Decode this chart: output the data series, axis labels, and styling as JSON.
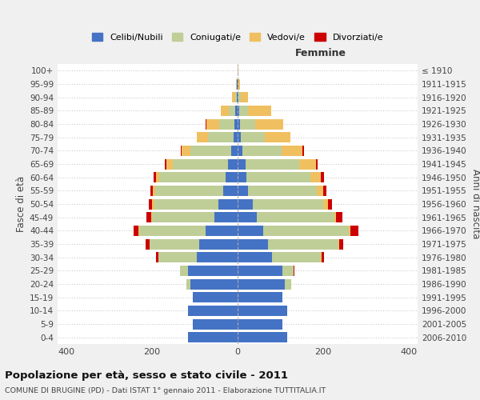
{
  "age_groups": [
    "0-4",
    "5-9",
    "10-14",
    "15-19",
    "20-24",
    "25-29",
    "30-34",
    "35-39",
    "40-44",
    "45-49",
    "50-54",
    "55-59",
    "60-64",
    "65-69",
    "70-74",
    "75-79",
    "80-84",
    "85-89",
    "90-94",
    "95-99",
    "100+"
  ],
  "birth_years": [
    "2006-2010",
    "2001-2005",
    "1996-2000",
    "1991-1995",
    "1986-1990",
    "1981-1985",
    "1976-1980",
    "1971-1975",
    "1966-1970",
    "1961-1965",
    "1956-1960",
    "1951-1955",
    "1946-1950",
    "1941-1945",
    "1936-1940",
    "1931-1935",
    "1926-1930",
    "1921-1925",
    "1916-1920",
    "1911-1915",
    "≤ 1910"
  ],
  "male": {
    "celibi": [
      115,
      105,
      115,
      105,
      110,
      115,
      95,
      90,
      75,
      55,
      45,
      33,
      28,
      22,
      15,
      10,
      8,
      5,
      2,
      1,
      0
    ],
    "coniugati": [
      0,
      0,
      0,
      0,
      10,
      20,
      90,
      115,
      155,
      145,
      150,
      160,
      155,
      130,
      95,
      60,
      35,
      15,
      3,
      1,
      0
    ],
    "vedovi": [
      0,
      0,
      0,
      0,
      0,
      0,
      0,
      1,
      1,
      2,
      4,
      5,
      8,
      15,
      20,
      25,
      30,
      20,
      8,
      2,
      0
    ],
    "divorziati": [
      0,
      0,
      0,
      0,
      0,
      0,
      5,
      8,
      12,
      10,
      8,
      6,
      5,
      3,
      2,
      1,
      1,
      0,
      0,
      0,
      0
    ]
  },
  "female": {
    "nubili": [
      115,
      105,
      115,
      105,
      110,
      105,
      80,
      70,
      60,
      45,
      35,
      25,
      20,
      18,
      12,
      8,
      6,
      4,
      2,
      1,
      0
    ],
    "coniugate": [
      0,
      0,
      0,
      0,
      15,
      25,
      115,
      165,
      200,
      180,
      165,
      160,
      150,
      125,
      90,
      55,
      35,
      20,
      5,
      1,
      0
    ],
    "vedove": [
      0,
      0,
      0,
      0,
      0,
      0,
      1,
      2,
      3,
      5,
      10,
      15,
      25,
      40,
      50,
      60,
      65,
      55,
      18,
      3,
      1
    ],
    "divorziate": [
      0,
      0,
      0,
      0,
      0,
      2,
      5,
      10,
      18,
      15,
      10,
      8,
      6,
      3,
      2,
      1,
      0,
      0,
      0,
      0,
      0
    ]
  },
  "colors": {
    "celibi_nubili": "#4472C4",
    "coniugati": "#BFCE97",
    "vedovi": "#F0C060",
    "divorziati": "#CC0000"
  },
  "title": "Popolazione per età, sesso e stato civile - 2011",
  "subtitle": "COMUNE DI BRUGINE (PD) - Dati ISTAT 1° gennaio 2011 - Elaborazione TUTTITALIA.IT",
  "xlabel_right": "Femmine",
  "ylabel_left": "Fasce di età",
  "ylabel_right": "Anni di nascita",
  "xlim": 420,
  "bg_color": "#f0f0f0",
  "plot_bg": "#ffffff",
  "legend_labels": [
    "Celibi/Nubili",
    "Coniugati/e",
    "Vedovi/e",
    "Divorziati/e"
  ]
}
